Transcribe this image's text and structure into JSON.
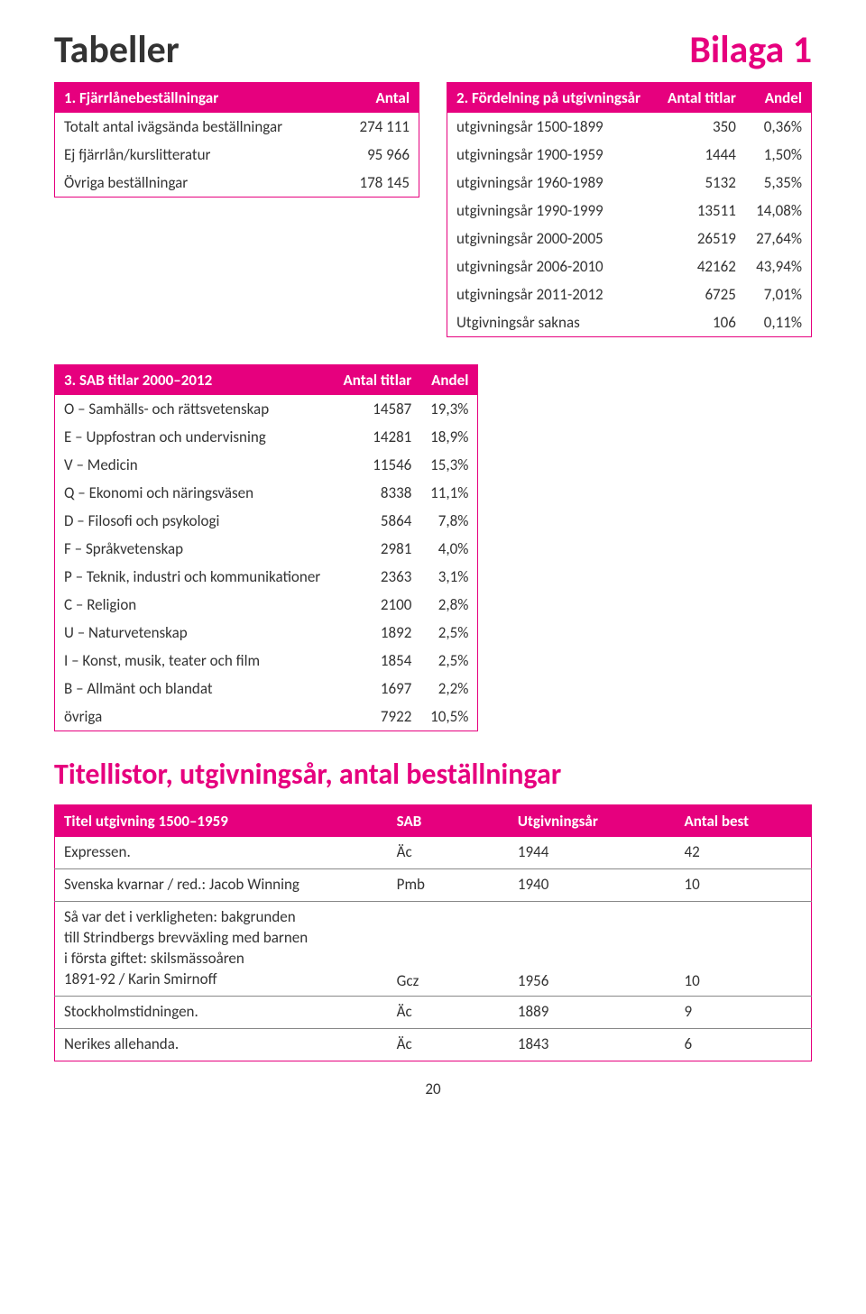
{
  "colors": {
    "accent": "#e6007e",
    "text": "#333333",
    "background": "#ffffff",
    "row_divider": "#888888"
  },
  "typography": {
    "h_main_fontsize": 42,
    "h_section_fontsize": 32,
    "body_fontsize": 17,
    "font_family": "Gill Sans"
  },
  "header": {
    "left": "Tabeller",
    "right": "Bilaga 1"
  },
  "table1": {
    "title": "1. Fjärrlånebeställningar",
    "col2": "Antal",
    "rows": [
      {
        "label": "Totalt antal ivägsända beställningar",
        "value": "274 111"
      },
      {
        "label": "Ej fjärrlån/kurslitteratur",
        "value": "95 966"
      },
      {
        "label": "Övriga beställningar",
        "value": "178 145"
      }
    ]
  },
  "table2": {
    "title": "2. Fördelning på utgivningsår",
    "col2": "Antal titlar",
    "col3": "Andel",
    "rows": [
      {
        "label": "utgivningsår 1500-1899",
        "v1": "350",
        "v2": "0,36%"
      },
      {
        "label": "utgivningsår 1900-1959",
        "v1": "1444",
        "v2": "1,50%"
      },
      {
        "label": "utgivningsår 1960-1989",
        "v1": "5132",
        "v2": "5,35%"
      },
      {
        "label": "utgivningsår 1990-1999",
        "v1": "13511",
        "v2": "14,08%"
      },
      {
        "label": "utgivningsår 2000-2005",
        "v1": "26519",
        "v2": "27,64%"
      },
      {
        "label": "utgivningsår 2006-2010",
        "v1": "42162",
        "v2": "43,94%"
      },
      {
        "label": "utgivningsår 2011-2012",
        "v1": "6725",
        "v2": "7,01%"
      },
      {
        "label": "Utgivningsår saknas",
        "v1": "106",
        "v2": "0,11%"
      }
    ]
  },
  "table3": {
    "title": "3. SAB titlar 2000–2012",
    "col2": "Antal titlar",
    "col3": "Andel",
    "rows": [
      {
        "label": "O – Samhälls- och rättsvetenskap",
        "v1": "14587",
        "v2": "19,3%"
      },
      {
        "label": "E – Uppfostran och undervisning",
        "v1": "14281",
        "v2": "18,9%"
      },
      {
        "label": "V – Medicin",
        "v1": "11546",
        "v2": "15,3%"
      },
      {
        "label": "Q – Ekonomi och näringsväsen",
        "v1": "8338",
        "v2": "11,1%"
      },
      {
        "label": "D – Filosofi och psykologi",
        "v1": "5864",
        "v2": "7,8%"
      },
      {
        "label": "F – Språkvetenskap",
        "v1": "2981",
        "v2": "4,0%"
      },
      {
        "label": "P – Teknik, industri och kommunikationer",
        "v1": "2363",
        "v2": "3,1%"
      },
      {
        "label": "C – Religion",
        "v1": "2100",
        "v2": "2,8%"
      },
      {
        "label": "U – Naturvetenskap",
        "v1": "1892",
        "v2": "2,5%"
      },
      {
        "label": "I – Konst, musik, teater och film",
        "v1": "1854",
        "v2": "2,5%"
      },
      {
        "label": "B – Allmänt och blandat",
        "v1": "1697",
        "v2": "2,2%"
      },
      {
        "label": "övriga",
        "v1": "7922",
        "v2": "10,5%"
      }
    ]
  },
  "section_heading": "Titellistor, utgivningsår, antal beställningar",
  "table4": {
    "col1": "Titel utgivning 1500–1959",
    "col2": "SAB",
    "col3": "Utgivningsår",
    "col4": "Antal best",
    "rows": [
      {
        "c1": "Expressen.",
        "c2": "Äc",
        "c3": "1944",
        "c4": "42"
      },
      {
        "c1": "Svenska kvarnar / red.: Jacob Winning",
        "c2": "Pmb",
        "c3": "1940",
        "c4": "10"
      },
      {
        "c1": "Så var det i verkligheten: bakgrunden\ntill Strindbergs brevväxling med barnen\ni första giftet:  skilsmässoåren\n1891-92 / Karin Smirnoff",
        "c2": "Gcz",
        "c3": "1956",
        "c4": "10"
      },
      {
        "c1": "Stockholmstidningen.",
        "c2": "Äc",
        "c3": "1889",
        "c4": "9"
      },
      {
        "c1": "Nerikes allehanda.",
        "c2": "Äc",
        "c3": "1843",
        "c4": "6"
      }
    ]
  },
  "page_number": "20"
}
